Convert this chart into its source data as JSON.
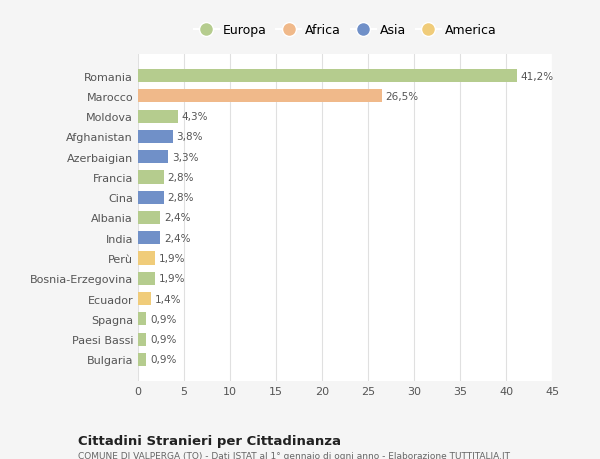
{
  "countries": [
    "Romania",
    "Marocco",
    "Moldova",
    "Afghanistan",
    "Azerbaigian",
    "Francia",
    "Cina",
    "Albania",
    "India",
    "Perù",
    "Bosnia-Erzegovina",
    "Ecuador",
    "Spagna",
    "Paesi Bassi",
    "Bulgaria"
  ],
  "values": [
    41.2,
    26.5,
    4.3,
    3.8,
    3.3,
    2.8,
    2.8,
    2.4,
    2.4,
    1.9,
    1.9,
    1.4,
    0.9,
    0.9,
    0.9
  ],
  "labels": [
    "41,2%",
    "26,5%",
    "4,3%",
    "3,8%",
    "3,3%",
    "2,8%",
    "2,8%",
    "2,4%",
    "2,4%",
    "1,9%",
    "1,9%",
    "1,4%",
    "0,9%",
    "0,9%",
    "0,9%"
  ],
  "colors": [
    "#b5cc8e",
    "#f0b98a",
    "#b5cc8e",
    "#7090c8",
    "#7090c8",
    "#b5cc8e",
    "#7090c8",
    "#b5cc8e",
    "#7090c8",
    "#f0cc7a",
    "#b5cc8e",
    "#f0cc7a",
    "#b5cc8e",
    "#b5cc8e",
    "#b5cc8e"
  ],
  "legend_labels": [
    "Europa",
    "Africa",
    "Asia",
    "America"
  ],
  "legend_colors": [
    "#b5cc8e",
    "#f0b98a",
    "#7090c8",
    "#f0cc7a"
  ],
  "title": "Cittadini Stranieri per Cittadinanza",
  "subtitle": "COMUNE DI VALPERGA (TO) - Dati ISTAT al 1° gennaio di ogni anno - Elaborazione TUTTITALIA.IT",
  "xlim": [
    0,
    45
  ],
  "xticks": [
    0,
    5,
    10,
    15,
    20,
    25,
    30,
    35,
    40,
    45
  ],
  "bg_color": "#f5f5f5",
  "plot_bg_color": "#ffffff",
  "grid_color": "#e0e0e0",
  "text_color": "#555555"
}
